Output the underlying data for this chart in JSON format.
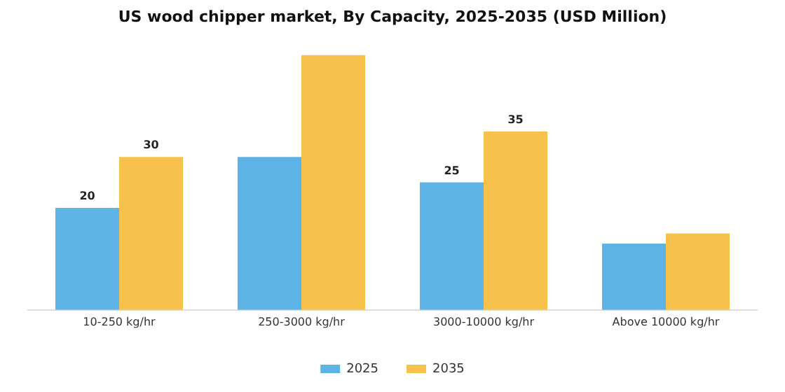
{
  "chart_data": {
    "type": "bar",
    "title": "US wood chipper market, By Capacity, 2025-2035 (USD Million)",
    "categories": [
      "10-250 kg/hr",
      "250-3000 kg/hr",
      "3000-10000 kg/hr",
      "Above 10000 kg/hr"
    ],
    "series": [
      {
        "name": "2025",
        "color": "#5db3e6",
        "values": [
          20,
          30,
          25,
          13
        ],
        "value_labels": [
          "20",
          null,
          "25",
          null
        ]
      },
      {
        "name": "2035",
        "color": "#f7c24c",
        "values": [
          30,
          50,
          35,
          15
        ],
        "value_labels": [
          "30",
          null,
          "35",
          null
        ]
      }
    ],
    "legend": "bottom",
    "grid": false
  }
}
